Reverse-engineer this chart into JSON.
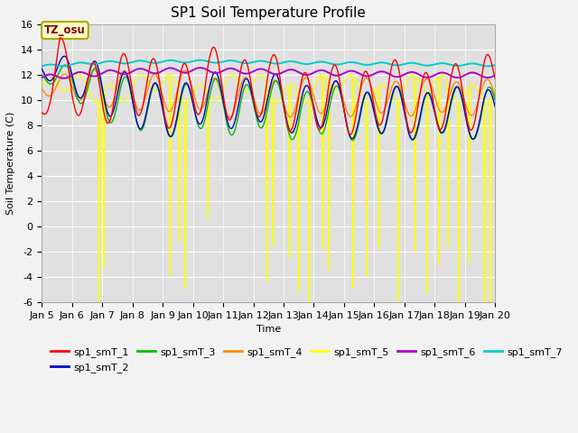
{
  "title": "SP1 Soil Temperature Profile",
  "xlabel": "Time",
  "ylabel": "Soil Temperature (C)",
  "ylim": [
    -6,
    16
  ],
  "yticks": [
    -6,
    -4,
    -2,
    0,
    2,
    4,
    6,
    8,
    10,
    12,
    14,
    16
  ],
  "x_tick_labels": [
    "Jan 5",
    "Jan 6",
    "Jan 7",
    "Jan 8",
    "Jan 9",
    "Jan 10",
    "Jan 11",
    "Jan 12",
    "Jan 13",
    "Jan 14",
    "Jan 15",
    "Jan 16",
    "Jan 17",
    "Jan 18",
    "Jan 19",
    "Jan 20"
  ],
  "line_colors": {
    "sp1_smT_1": "#ff0000",
    "sp1_smT_2": "#0000cc",
    "sp1_smT_3": "#00bb00",
    "sp1_smT_4": "#ff8800",
    "sp1_smT_5": "#ffff00",
    "sp1_smT_6": "#aa00cc",
    "sp1_smT_7": "#00cccc"
  },
  "annotation_text": "TZ_osu",
  "background_color": "#e8e8e8",
  "plot_bg_color": "#e0e0e0",
  "grid_color": "#ffffff",
  "title_fontsize": 11,
  "axis_label_fontsize": 8,
  "tick_fontsize": 8,
  "legend_fontsize": 8
}
